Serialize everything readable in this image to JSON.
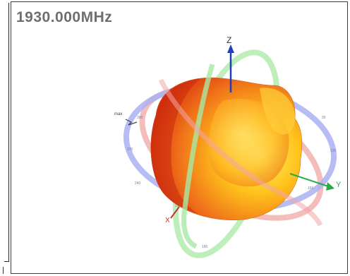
{
  "plot": {
    "frequency_label": "1930.000MHz",
    "axes": {
      "z": "Z",
      "y": "Y",
      "x": "X"
    },
    "max_marker": "max"
  },
  "colors": {
    "xy_ring": "#aab0f2",
    "xz_ring": "#f2a6a6",
    "yz_ring": "#a8e8a2",
    "pattern_dark": "#e03a12",
    "pattern_light": "#ffe35a",
    "z_axis": "#1f3fb5",
    "y_axis": "#2da84a",
    "x_axis": "#c0392b"
  }
}
